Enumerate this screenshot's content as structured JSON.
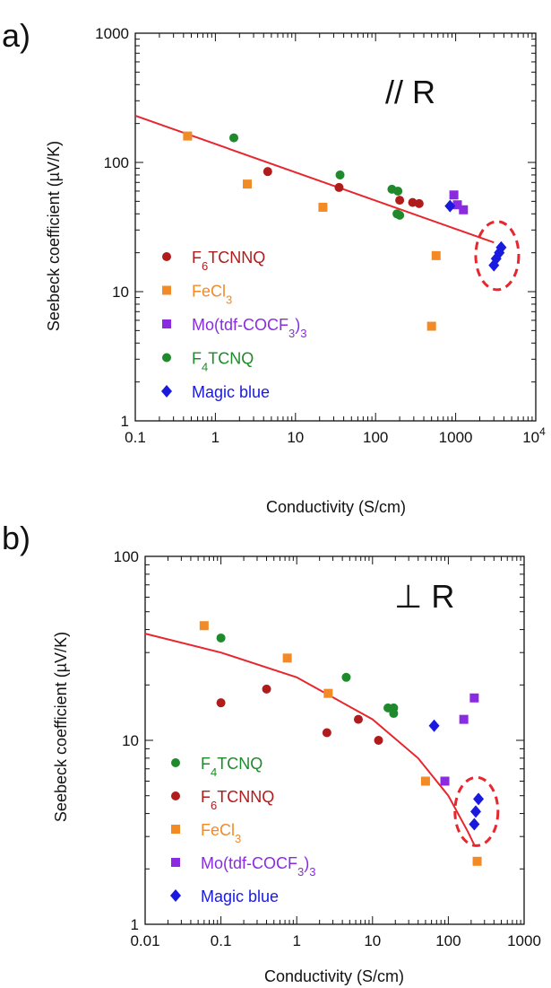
{
  "chart_data": [
    {
      "type": "scatter",
      "panel_label": "a)",
      "orientation_label": "// R",
      "xlabel": "Conductivity (S/cm)",
      "ylabel": "Seebeck coefficient (µV/K)",
      "xscale": "log",
      "yscale": "log",
      "xlim": [
        0.1,
        10000
      ],
      "ylim": [
        1,
        1000
      ],
      "x_ticks": [
        {
          "v": 0.1,
          "t": "0.1"
        },
        {
          "v": 1,
          "t": "1"
        },
        {
          "v": 10,
          "t": "10"
        },
        {
          "v": 100,
          "t": "100"
        },
        {
          "v": 1000,
          "t": "1000"
        },
        {
          "v": 10000,
          "t": "10",
          "sup": "4"
        }
      ],
      "y_ticks": [
        {
          "v": 1,
          "t": "1"
        },
        {
          "v": 10,
          "t": "10"
        },
        {
          "v": 100,
          "t": "100"
        },
        {
          "v": 1000,
          "t": "1000"
        }
      ],
      "grid": false,
      "legend_position": "lower-left",
      "series": [
        {
          "name": "F6TCNNQ",
          "name_parts": [
            "F",
            "6",
            "TCNNQ"
          ],
          "marker": "circle",
          "color": "#b01c1c",
          "points": [
            [
              4.5,
              85
            ],
            [
              35,
              64
            ],
            [
              200,
              51
            ],
            [
              290,
              49
            ],
            [
              350,
              48
            ]
          ]
        },
        {
          "name": "FeCl3",
          "name_parts": [
            "FeCl",
            "3",
            ""
          ],
          "marker": "square",
          "color": "#f28a26",
          "points": [
            [
              0.45,
              160
            ],
            [
              2.5,
              68
            ],
            [
              22,
              45
            ],
            [
              570,
              19
            ],
            [
              500,
              5.4
            ]
          ]
        },
        {
          "name": "Mo(tdf-COCF3)3",
          "name_parts": [
            "Mo(tdf-COCF",
            "3",
            ")",
            "3"
          ],
          "marker": "square",
          "color": "#8a2be2",
          "points": [
            [
              950,
              56
            ],
            [
              1050,
              47
            ],
            [
              1250,
              43
            ]
          ]
        },
        {
          "name": "F4TCNQ",
          "name_parts": [
            "F",
            "4",
            "TCNQ"
          ],
          "marker": "circle",
          "color": "#1f8a2c",
          "points": [
            [
              1.7,
              155
            ],
            [
              36,
              80
            ],
            [
              160,
              62
            ],
            [
              190,
              60
            ],
            [
              185,
              40
            ],
            [
              200,
              39
            ]
          ]
        },
        {
          "name": "Magic blue",
          "name_parts": [
            "Magic blue"
          ],
          "marker": "diamond",
          "color": "#1a1adf",
          "points": [
            [
              850,
              46
            ],
            [
              3000,
              16
            ],
            [
              3200,
              18
            ],
            [
              3500,
              20
            ],
            [
              3700,
              22
            ]
          ]
        }
      ],
      "fit_line": [
        [
          0.1,
          230
        ],
        [
          3000,
          24
        ]
      ],
      "fit_color": "#e8262e",
      "highlight_ellipse": {
        "x": 3300,
        "y": 19
      }
    },
    {
      "type": "scatter",
      "panel_label": "b)",
      "orientation_label": "⊥ R",
      "xlabel": "Conductivity (S/cm)",
      "ylabel": "Seebeck coefficient (µV/K)",
      "xscale": "log",
      "yscale": "log",
      "xlim": [
        0.01,
        1000
      ],
      "ylim": [
        1,
        100
      ],
      "x_ticks": [
        {
          "v": 0.01,
          "t": "0.01"
        },
        {
          "v": 0.1,
          "t": "0.1"
        },
        {
          "v": 1,
          "t": "1"
        },
        {
          "v": 10,
          "t": "10"
        },
        {
          "v": 100,
          "t": "100"
        },
        {
          "v": 1000,
          "t": "1000"
        }
      ],
      "y_ticks": [
        {
          "v": 1,
          "t": "1"
        },
        {
          "v": 10,
          "t": "10"
        },
        {
          "v": 100,
          "t": "100"
        }
      ],
      "grid": false,
      "legend_position": "lower-left",
      "series": [
        {
          "name": "F4TCNQ",
          "name_parts": [
            "F",
            "4",
            "TCNQ"
          ],
          "marker": "circle",
          "color": "#1f8a2c",
          "points": [
            [
              0.1,
              36
            ],
            [
              4.5,
              22
            ],
            [
              16,
              15
            ],
            [
              19,
              14
            ],
            [
              19,
              15
            ]
          ]
        },
        {
          "name": "F6TCNNQ",
          "name_parts": [
            "F",
            "6",
            "TCNNQ"
          ],
          "marker": "circle",
          "color": "#b01c1c",
          "points": [
            [
              0.1,
              16
            ],
            [
              0.4,
              19
            ],
            [
              2.5,
              11
            ],
            [
              6.5,
              13
            ],
            [
              12,
              10
            ]
          ]
        },
        {
          "name": "FeCl3",
          "name_parts": [
            "FeCl",
            "3",
            ""
          ],
          "marker": "square",
          "color": "#f28a26",
          "points": [
            [
              0.06,
              42
            ],
            [
              0.75,
              28
            ],
            [
              2.6,
              18
            ],
            [
              50,
              6
            ],
            [
              240,
              2.2
            ]
          ]
        },
        {
          "name": "Mo(tdf-COCF3)3",
          "name_parts": [
            "Mo(tdf-COCF",
            "3",
            ")",
            "3"
          ],
          "marker": "square",
          "color": "#8a2be2",
          "points": [
            [
              90,
              6
            ],
            [
              160,
              13
            ],
            [
              220,
              17
            ]
          ]
        },
        {
          "name": "Magic blue",
          "name_parts": [
            "Magic blue"
          ],
          "marker": "diamond",
          "color": "#1a1adf",
          "points": [
            [
              65,
              12
            ],
            [
              220,
              3.5
            ],
            [
              230,
              4.1
            ],
            [
              250,
              4.8
            ]
          ]
        }
      ],
      "fit_curve": [
        [
          0.01,
          38
        ],
        [
          0.1,
          30
        ],
        [
          1,
          22
        ],
        [
          10,
          13
        ],
        [
          40,
          8
        ],
        [
          100,
          5
        ],
        [
          180,
          3.2
        ],
        [
          220,
          2.7
        ]
      ],
      "fit_color": "#e8262e",
      "highlight_ellipse": {
        "x": 235,
        "y": 4.1
      }
    }
  ]
}
